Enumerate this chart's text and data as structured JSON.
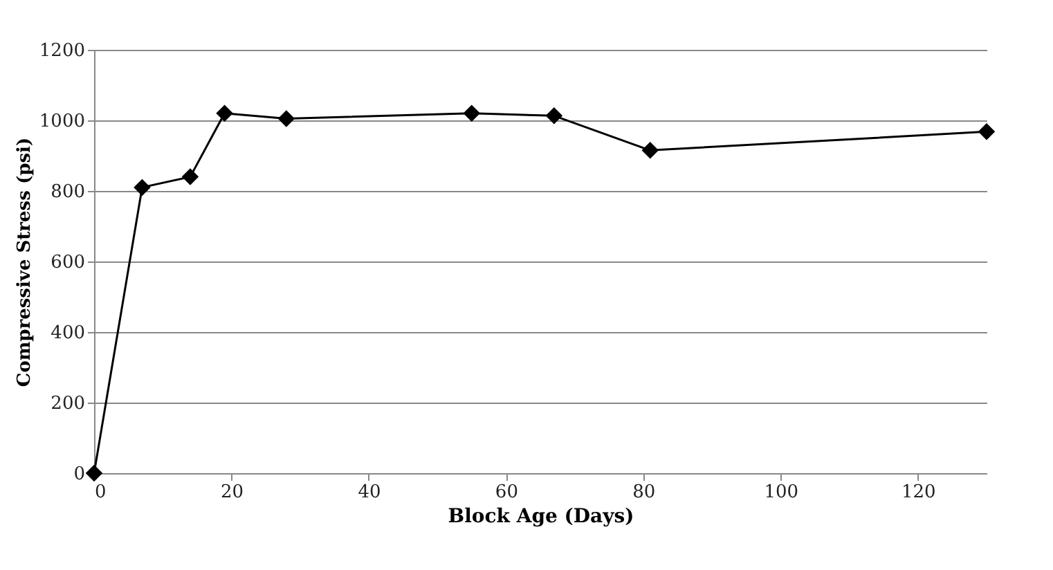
{
  "chart_data": {
    "type": "line",
    "xlabel": "Block Age (Days)",
    "ylabel": "Compressive Stress (psi)",
    "x": [
      0,
      7,
      14,
      19,
      28,
      55,
      67,
      81,
      130
    ],
    "series": [
      {
        "color": "#000000",
        "values": [
          0,
          810,
          840,
          1020,
          1005,
          1020,
          1013,
          915,
          968
        ]
      }
    ],
    "xlim": [
      0,
      130
    ],
    "xticks": [
      0,
      20,
      40,
      60,
      80,
      100,
      120
    ],
    "ylim": [
      0,
      1200
    ],
    "yticks": [
      0,
      200,
      400,
      600,
      800,
      1000,
      1200
    ],
    "grid": "y",
    "marker": "diamond",
    "line_style": "solid"
  }
}
